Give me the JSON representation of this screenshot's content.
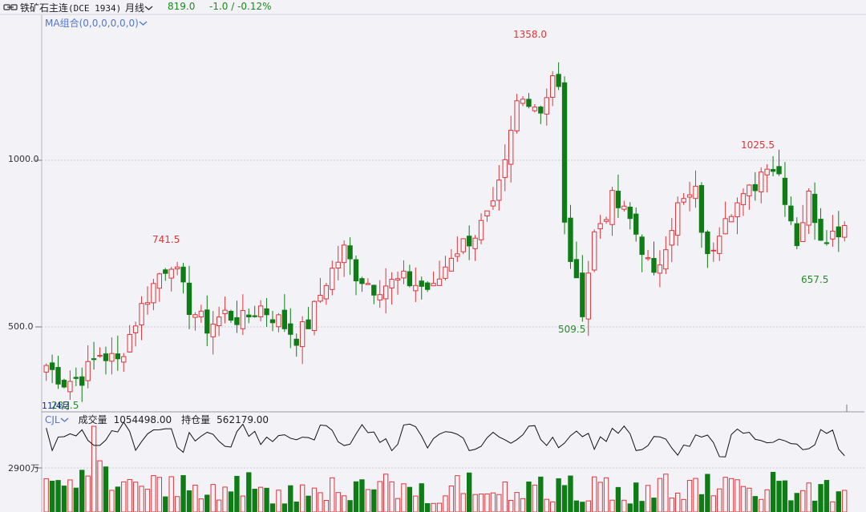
{
  "header": {
    "symbol": "铁矿石主连",
    "exchange_code": "(DCE 1934)",
    "period": "月线",
    "price": "819.0",
    "change": "-1.0 / -0.12%"
  },
  "indicator": {
    "ma_label": "MA组合(0,0,0,0,0,0)"
  },
  "axis": {
    "price_ticks": [
      {
        "label": "1000.0",
        "value": 1000
      },
      {
        "label": "500.0",
        "value": 500
      }
    ],
    "volume_tick": "2900万",
    "date_label": "11/4月"
  },
  "annotations": {
    "high_1358": "1358.0",
    "high_1025": "1025.5",
    "high_741": "741.5",
    "low_509": "509.5",
    "low_657": "657.5",
    "low_start": "282.5"
  },
  "volume_legend": {
    "name": "CJL",
    "volume_label": "成交量",
    "volume_value": "1054498.00",
    "oi_label": "持仓量",
    "oi_value": "562179.00"
  },
  "colors": {
    "up": "#e0353a",
    "down": "#0e7d16",
    "oi_line": "#111111",
    "grid": "#c8c8d4"
  },
  "icons": {
    "link": "link-icon",
    "dropdown": "chevron-down-icon"
  }
}
